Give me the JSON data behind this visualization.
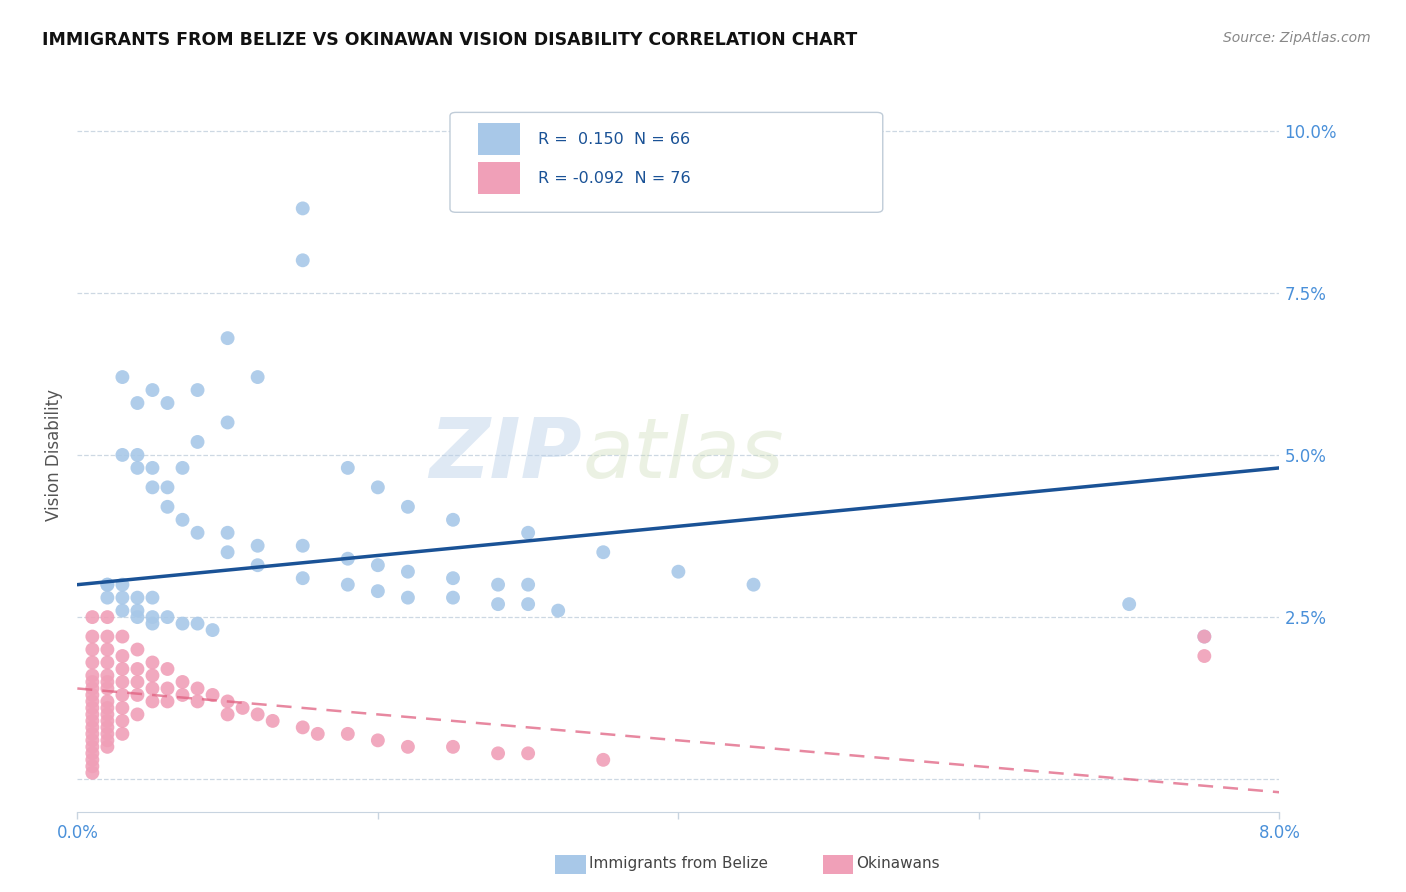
{
  "title": "IMMIGRANTS FROM BELIZE VS OKINAWAN VISION DISABILITY CORRELATION CHART",
  "source": "Source: ZipAtlas.com",
  "ylabel": "Vision Disability",
  "xmin": 0.0,
  "xmax": 0.08,
  "ymin": -0.005,
  "ymax": 0.105,
  "series1_color": "#a8c8e8",
  "series2_color": "#f0a0b8",
  "trendline1_color": "#1a5296",
  "trendline2_color": "#e06080",
  "watermark_zip": "ZIP",
  "watermark_atlas": "atlas",
  "belize_x": [
    0.015,
    0.015,
    0.01,
    0.012,
    0.008,
    0.01,
    0.006,
    0.008,
    0.005,
    0.007,
    0.003,
    0.004,
    0.005,
    0.003,
    0.004,
    0.006,
    0.004,
    0.005,
    0.006,
    0.007,
    0.008,
    0.01,
    0.012,
    0.015,
    0.018,
    0.02,
    0.022,
    0.025,
    0.028,
    0.03,
    0.018,
    0.02,
    0.022,
    0.025,
    0.03,
    0.035,
    0.04,
    0.045,
    0.002,
    0.002,
    0.003,
    0.003,
    0.004,
    0.004,
    0.005,
    0.005,
    0.006,
    0.007,
    0.008,
    0.009,
    0.01,
    0.012,
    0.015,
    0.018,
    0.02,
    0.022,
    0.025,
    0.028,
    0.03,
    0.032,
    0.07,
    0.075,
    0.002,
    0.003,
    0.004,
    0.005
  ],
  "belize_y": [
    0.088,
    0.08,
    0.068,
    0.062,
    0.06,
    0.055,
    0.058,
    0.052,
    0.06,
    0.048,
    0.05,
    0.048,
    0.045,
    0.062,
    0.058,
    0.045,
    0.05,
    0.048,
    0.042,
    0.04,
    0.038,
    0.038,
    0.036,
    0.036,
    0.034,
    0.033,
    0.032,
    0.031,
    0.03,
    0.03,
    0.048,
    0.045,
    0.042,
    0.04,
    0.038,
    0.035,
    0.032,
    0.03,
    0.03,
    0.028,
    0.028,
    0.026,
    0.026,
    0.025,
    0.025,
    0.024,
    0.025,
    0.024,
    0.024,
    0.023,
    0.035,
    0.033,
    0.031,
    0.03,
    0.029,
    0.028,
    0.028,
    0.027,
    0.027,
    0.026,
    0.027,
    0.022,
    0.03,
    0.03,
    0.028,
    0.028
  ],
  "okinawa_x": [
    0.001,
    0.001,
    0.001,
    0.001,
    0.001,
    0.001,
    0.001,
    0.001,
    0.001,
    0.001,
    0.001,
    0.001,
    0.001,
    0.001,
    0.001,
    0.001,
    0.001,
    0.001,
    0.001,
    0.001,
    0.002,
    0.002,
    0.002,
    0.002,
    0.002,
    0.002,
    0.002,
    0.002,
    0.002,
    0.002,
    0.002,
    0.002,
    0.002,
    0.002,
    0.002,
    0.003,
    0.003,
    0.003,
    0.003,
    0.003,
    0.003,
    0.003,
    0.003,
    0.004,
    0.004,
    0.004,
    0.004,
    0.004,
    0.005,
    0.005,
    0.005,
    0.005,
    0.006,
    0.006,
    0.006,
    0.007,
    0.007,
    0.008,
    0.008,
    0.009,
    0.01,
    0.01,
    0.011,
    0.012,
    0.013,
    0.015,
    0.016,
    0.018,
    0.02,
    0.022,
    0.025,
    0.028,
    0.03,
    0.035,
    0.075,
    0.075
  ],
  "okinawa_y": [
    0.025,
    0.022,
    0.02,
    0.018,
    0.016,
    0.015,
    0.014,
    0.013,
    0.012,
    0.011,
    0.01,
    0.009,
    0.008,
    0.007,
    0.006,
    0.005,
    0.004,
    0.003,
    0.002,
    0.001,
    0.025,
    0.022,
    0.02,
    0.018,
    0.016,
    0.015,
    0.014,
    0.012,
    0.011,
    0.01,
    0.009,
    0.008,
    0.007,
    0.006,
    0.005,
    0.022,
    0.019,
    0.017,
    0.015,
    0.013,
    0.011,
    0.009,
    0.007,
    0.02,
    0.017,
    0.015,
    0.013,
    0.01,
    0.018,
    0.016,
    0.014,
    0.012,
    0.017,
    0.014,
    0.012,
    0.015,
    0.013,
    0.014,
    0.012,
    0.013,
    0.012,
    0.01,
    0.011,
    0.01,
    0.009,
    0.008,
    0.007,
    0.007,
    0.006,
    0.005,
    0.005,
    0.004,
    0.004,
    0.003,
    0.022,
    0.019
  ],
  "trendline1_x0": 0.0,
  "trendline1_x1": 0.08,
  "trendline1_y0": 0.03,
  "trendline1_y1": 0.048,
  "trendline2_x0": 0.0,
  "trendline2_x1": 0.08,
  "trendline2_y0": 0.014,
  "trendline2_y1": -0.002
}
